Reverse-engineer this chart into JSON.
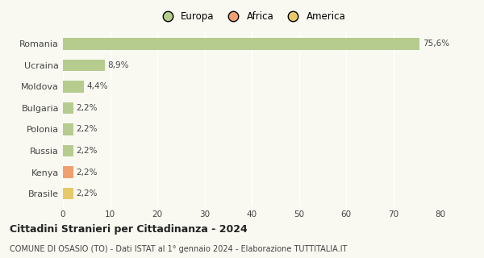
{
  "categories": [
    "Romania",
    "Ucraina",
    "Moldova",
    "Bulgaria",
    "Polonia",
    "Russia",
    "Kenya",
    "Brasile"
  ],
  "values": [
    75.6,
    8.9,
    4.4,
    2.2,
    2.2,
    2.2,
    2.2,
    2.2
  ],
  "labels": [
    "75,6%",
    "8,9%",
    "4,4%",
    "2,2%",
    "2,2%",
    "2,2%",
    "2,2%",
    "2,2%"
  ],
  "colors": [
    "#b5cc8e",
    "#b5cc8e",
    "#b5cc8e",
    "#b5cc8e",
    "#b5cc8e",
    "#b5cc8e",
    "#f0a070",
    "#e8c96a"
  ],
  "legend_items": [
    {
      "label": "Europa",
      "color": "#b5cc8e"
    },
    {
      "label": "Africa",
      "color": "#f0a070"
    },
    {
      "label": "America",
      "color": "#e8c96a"
    }
  ],
  "title": "Cittadini Stranieri per Cittadinanza - 2024",
  "subtitle": "COMUNE DI OSASIO (TO) - Dati ISTAT al 1° gennaio 2024 - Elaborazione TUTTITALIA.IT",
  "xlim": [
    0,
    80
  ],
  "xticks": [
    0,
    10,
    20,
    30,
    40,
    50,
    60,
    70,
    80
  ],
  "background_color": "#f9f9f2",
  "grid_color": "#ffffff",
  "bar_height": 0.55,
  "label_fontsize": 7.5,
  "ytick_fontsize": 8,
  "xtick_fontsize": 7.5,
  "title_fontsize": 9,
  "subtitle_fontsize": 7,
  "legend_fontsize": 8.5
}
